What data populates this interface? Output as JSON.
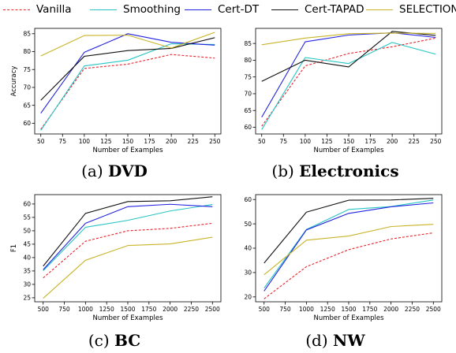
{
  "legend": [
    {
      "name": "Vanilla",
      "color": "#e8222b",
      "dash": true
    },
    {
      "name": "Smoothing",
      "color": "#28c4c4",
      "dash": false
    },
    {
      "name": "Cert-DT",
      "color": "#2222e0",
      "dash": false
    },
    {
      "name": "Cert-TAPAD",
      "color": "#111111",
      "dash": false
    },
    {
      "name": "SELECTION",
      "color": "#c8b428",
      "dash": false
    }
  ],
  "captions": [
    {
      "prefix": "(a) ",
      "bold": "DVD"
    },
    {
      "prefix": "(b) ",
      "bold": "Electronics"
    },
    {
      "prefix": "(c) ",
      "bold": "BC"
    },
    {
      "prefix": "(d) ",
      "bold": "NW"
    }
  ],
  "chart_data": [
    {
      "type": "line",
      "xlabel": "Number of Examples",
      "ylabel": "Accuracy",
      "xlim": [
        43,
        257
      ],
      "ylim": [
        57,
        86.5
      ],
      "xticks": [
        50,
        75,
        100,
        125,
        150,
        175,
        200,
        225,
        250
      ],
      "yticks": [
        60,
        65,
        70,
        75,
        80,
        85
      ],
      "x": [
        50,
        100,
        150,
        200,
        250
      ],
      "series": [
        {
          "name": "Vanilla",
          "values": [
            58.3,
            75.3,
            76.5,
            79.2,
            78.2
          ]
        },
        {
          "name": "Smoothing",
          "values": [
            58.0,
            76.0,
            77.6,
            82.2,
            82.0
          ]
        },
        {
          "name": "Cert-DT",
          "values": [
            62.8,
            79.8,
            85.0,
            82.6,
            81.8
          ]
        },
        {
          "name": "Cert-TAPAD",
          "values": [
            66.4,
            78.7,
            80.3,
            80.9,
            83.9
          ]
        },
        {
          "name": "SELECTION",
          "values": [
            78.8,
            84.5,
            84.6,
            81.0,
            85.4
          ]
        }
      ]
    },
    {
      "type": "line",
      "xlabel": "Number of Examples",
      "ylabel": "",
      "xlim": [
        43,
        257
      ],
      "ylim": [
        58,
        89.5
      ],
      "xticks": [
        50,
        75,
        100,
        125,
        150,
        175,
        200,
        225,
        250
      ],
      "yticks": [
        60,
        65,
        70,
        75,
        80,
        85
      ],
      "x": [
        50,
        100,
        150,
        200,
        250
      ],
      "series": [
        {
          "name": "Vanilla",
          "values": [
            60.3,
            78.3,
            82.0,
            84.0,
            86.6
          ]
        },
        {
          "name": "Smoothing",
          "values": [
            59.3,
            80.8,
            79.0,
            85.3,
            81.8
          ]
        },
        {
          "name": "Cert-DT",
          "values": [
            63.0,
            85.5,
            87.5,
            88.2,
            86.8
          ]
        },
        {
          "name": "Cert-TAPAD",
          "values": [
            73.7,
            80.0,
            78.0,
            88.6,
            87.4
          ]
        },
        {
          "name": "SELECTION",
          "values": [
            84.6,
            86.6,
            87.9,
            88.1,
            88.0
          ]
        }
      ]
    },
    {
      "type": "line",
      "xlabel": "Number of Examples",
      "ylabel": "F1",
      "xlim": [
        400,
        2600
      ],
      "ylim": [
        23.5,
        63.5
      ],
      "xticks": [
        500,
        750,
        1000,
        1250,
        1500,
        1750,
        2000,
        2250,
        2500
      ],
      "yticks": [
        25,
        30,
        35,
        40,
        45,
        50,
        55,
        60
      ],
      "x": [
        500,
        1000,
        1500,
        2000,
        2500
      ],
      "series": [
        {
          "name": "Vanilla",
          "values": [
            32.4,
            46.1,
            50.0,
            50.9,
            52.8
          ]
        },
        {
          "name": "Smoothing",
          "values": [
            35.1,
            51.3,
            53.9,
            57.4,
            59.8
          ]
        },
        {
          "name": "Cert-DT",
          "values": [
            35.5,
            52.8,
            59.0,
            59.9,
            59.0
          ]
        },
        {
          "name": "Cert-TAPAD",
          "values": [
            36.8,
            56.5,
            60.9,
            61.2,
            62.7
          ]
        },
        {
          "name": "SELECTION",
          "values": [
            24.8,
            39.0,
            44.5,
            45.1,
            47.6
          ]
        }
      ]
    },
    {
      "type": "line",
      "xlabel": "Number of Examples",
      "ylabel": "",
      "xlim": [
        400,
        2600
      ],
      "ylim": [
        18,
        62
      ],
      "xticks": [
        500,
        750,
        1000,
        1250,
        1500,
        1750,
        2000,
        2250,
        2500
      ],
      "yticks": [
        20,
        30,
        40,
        50,
        60
      ],
      "x": [
        500,
        1000,
        1500,
        2000,
        2500
      ],
      "series": [
        {
          "name": "Vanilla",
          "values": [
            19.2,
            32.4,
            39.4,
            43.8,
            46.3
          ]
        },
        {
          "name": "Smoothing",
          "values": [
            23.6,
            47.7,
            55.9,
            57.1,
            59.8
          ]
        },
        {
          "name": "Cert-DT",
          "values": [
            22.4,
            47.5,
            54.3,
            57.0,
            58.6
          ]
        },
        {
          "name": "Cert-TAPAD",
          "values": [
            33.9,
            54.8,
            59.7,
            59.8,
            60.5
          ]
        },
        {
          "name": "SELECTION",
          "values": [
            29.1,
            43.3,
            45.0,
            48.9,
            49.8
          ]
        }
      ]
    }
  ]
}
